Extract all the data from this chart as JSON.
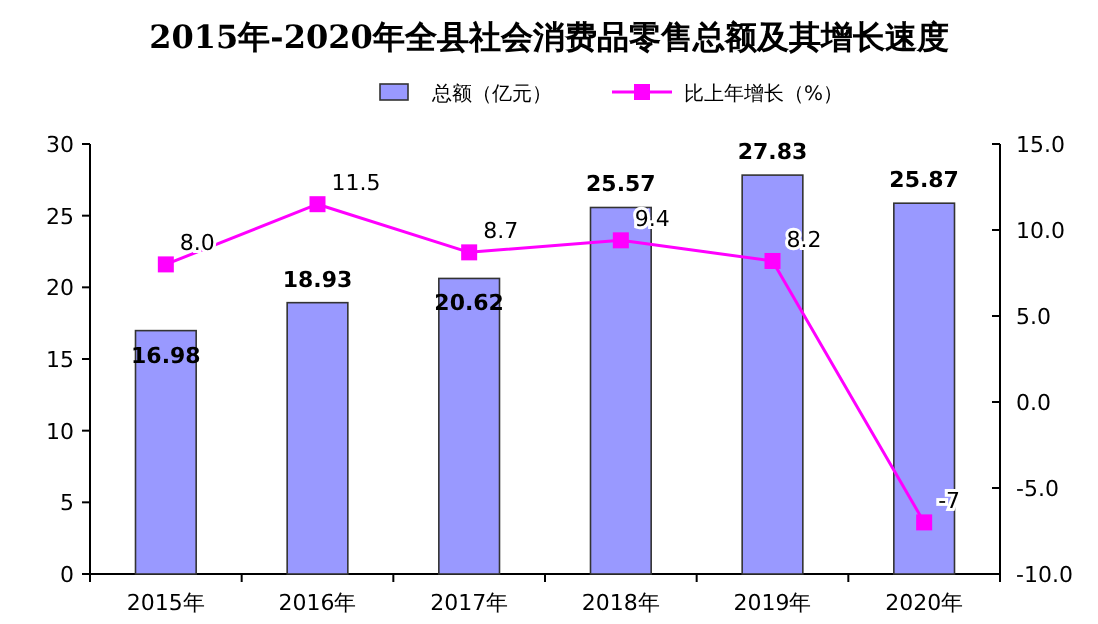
{
  "chart_data": {
    "type": "bar",
    "title": "2015年-2020年全县社会消费品零售总额及其增长速度",
    "categories": [
      "2015年",
      "2016年",
      "2017年",
      "2018年",
      "2019年",
      "2020年"
    ],
    "series": [
      {
        "name": "总额（亿元）",
        "color": "#9999ff",
        "values": [
          16.98,
          18.93,
          20.62,
          25.57,
          27.83,
          25.87
        ],
        "value_labels": [
          "16.98",
          "18.93",
          "20.62",
          "25.57",
          "27.83",
          "25.87"
        ]
      },
      {
        "name": "比上年增长（%）",
        "type": "line",
        "axis": "y2",
        "color": "#ff00ff",
        "marker": "square",
        "values": [
          8.0,
          11.5,
          8.7,
          9.4,
          8.2,
          -7
        ],
        "value_labels": [
          "8.0",
          "11.5",
          "8.7",
          "9.4",
          "8.2",
          "-7"
        ]
      }
    ],
    "ylim": [
      0,
      30
    ],
    "yticks": [
      0,
      5,
      10,
      15,
      20,
      25,
      30
    ],
    "y2lim": [
      -10,
      15
    ],
    "y2ticks": [
      {
        "value": -10,
        "label": "-10.0"
      },
      {
        "value": -5,
        "label": "-5.0"
      },
      {
        "value": 0,
        "label": "0.0"
      },
      {
        "value": 5,
        "label": "5.0"
      },
      {
        "value": 10,
        "label": "10.0"
      },
      {
        "value": 15,
        "label": "15.0"
      }
    ],
    "legend": "top",
    "grid": false
  }
}
